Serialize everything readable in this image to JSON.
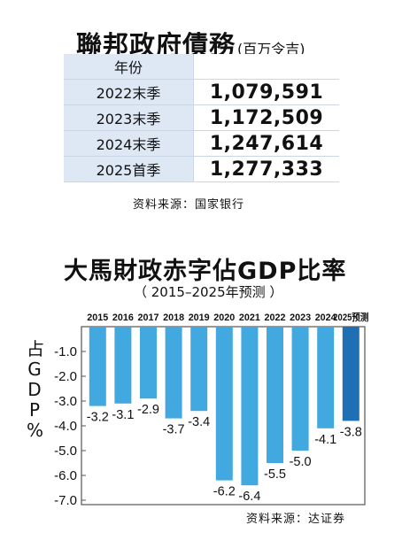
{
  "debt_table": {
    "title": "聯邦政府債務",
    "unit": "(百万令吉)",
    "header": "年份",
    "rows": [
      {
        "period": "2022末季",
        "value": "1,079,591"
      },
      {
        "period": "2023末季",
        "value": "1,172,509"
      },
      {
        "period": "2024末季",
        "value": "1,247,614"
      },
      {
        "period": "2025首季",
        "value": "1,277,333"
      }
    ],
    "source": "资料来源：国家银行"
  },
  "chart_data": {
    "type": "bar",
    "title": "大馬財政赤字佔GDP比率",
    "subtitle": "（ 2015–2025年预测 ）",
    "ylabel": [
      "占",
      "G",
      "D",
      "P",
      "%"
    ],
    "categories": [
      "2015",
      "2016",
      "2017",
      "2018",
      "2019",
      "2020",
      "2021",
      "2022",
      "2023",
      "2024",
      "2025预测"
    ],
    "values": [
      -3.2,
      -3.1,
      -2.9,
      -3.7,
      -3.4,
      -6.2,
      -6.4,
      -5.5,
      -5.0,
      -4.1,
      -3.8
    ],
    "value_labels": [
      "-3.2",
      "-3.1",
      "-2.9",
      "-3.7",
      "-3.4",
      "-6.2",
      "-6.4",
      "-5.5",
      "-5.0",
      "-4.1",
      "-3.8"
    ],
    "yticks": [
      "-1.0",
      "-2.0",
      "-3.0",
      "-4.0",
      "-5.0",
      "-6.0",
      "-7.0"
    ],
    "ylim": [
      0,
      -7.0
    ],
    "grid": false,
    "colors": {
      "bar": "#42a8e0",
      "bar_forecast": "#1f6fb5",
      "frame": "#555555"
    }
  },
  "chart_source": "资料来源：达证券"
}
